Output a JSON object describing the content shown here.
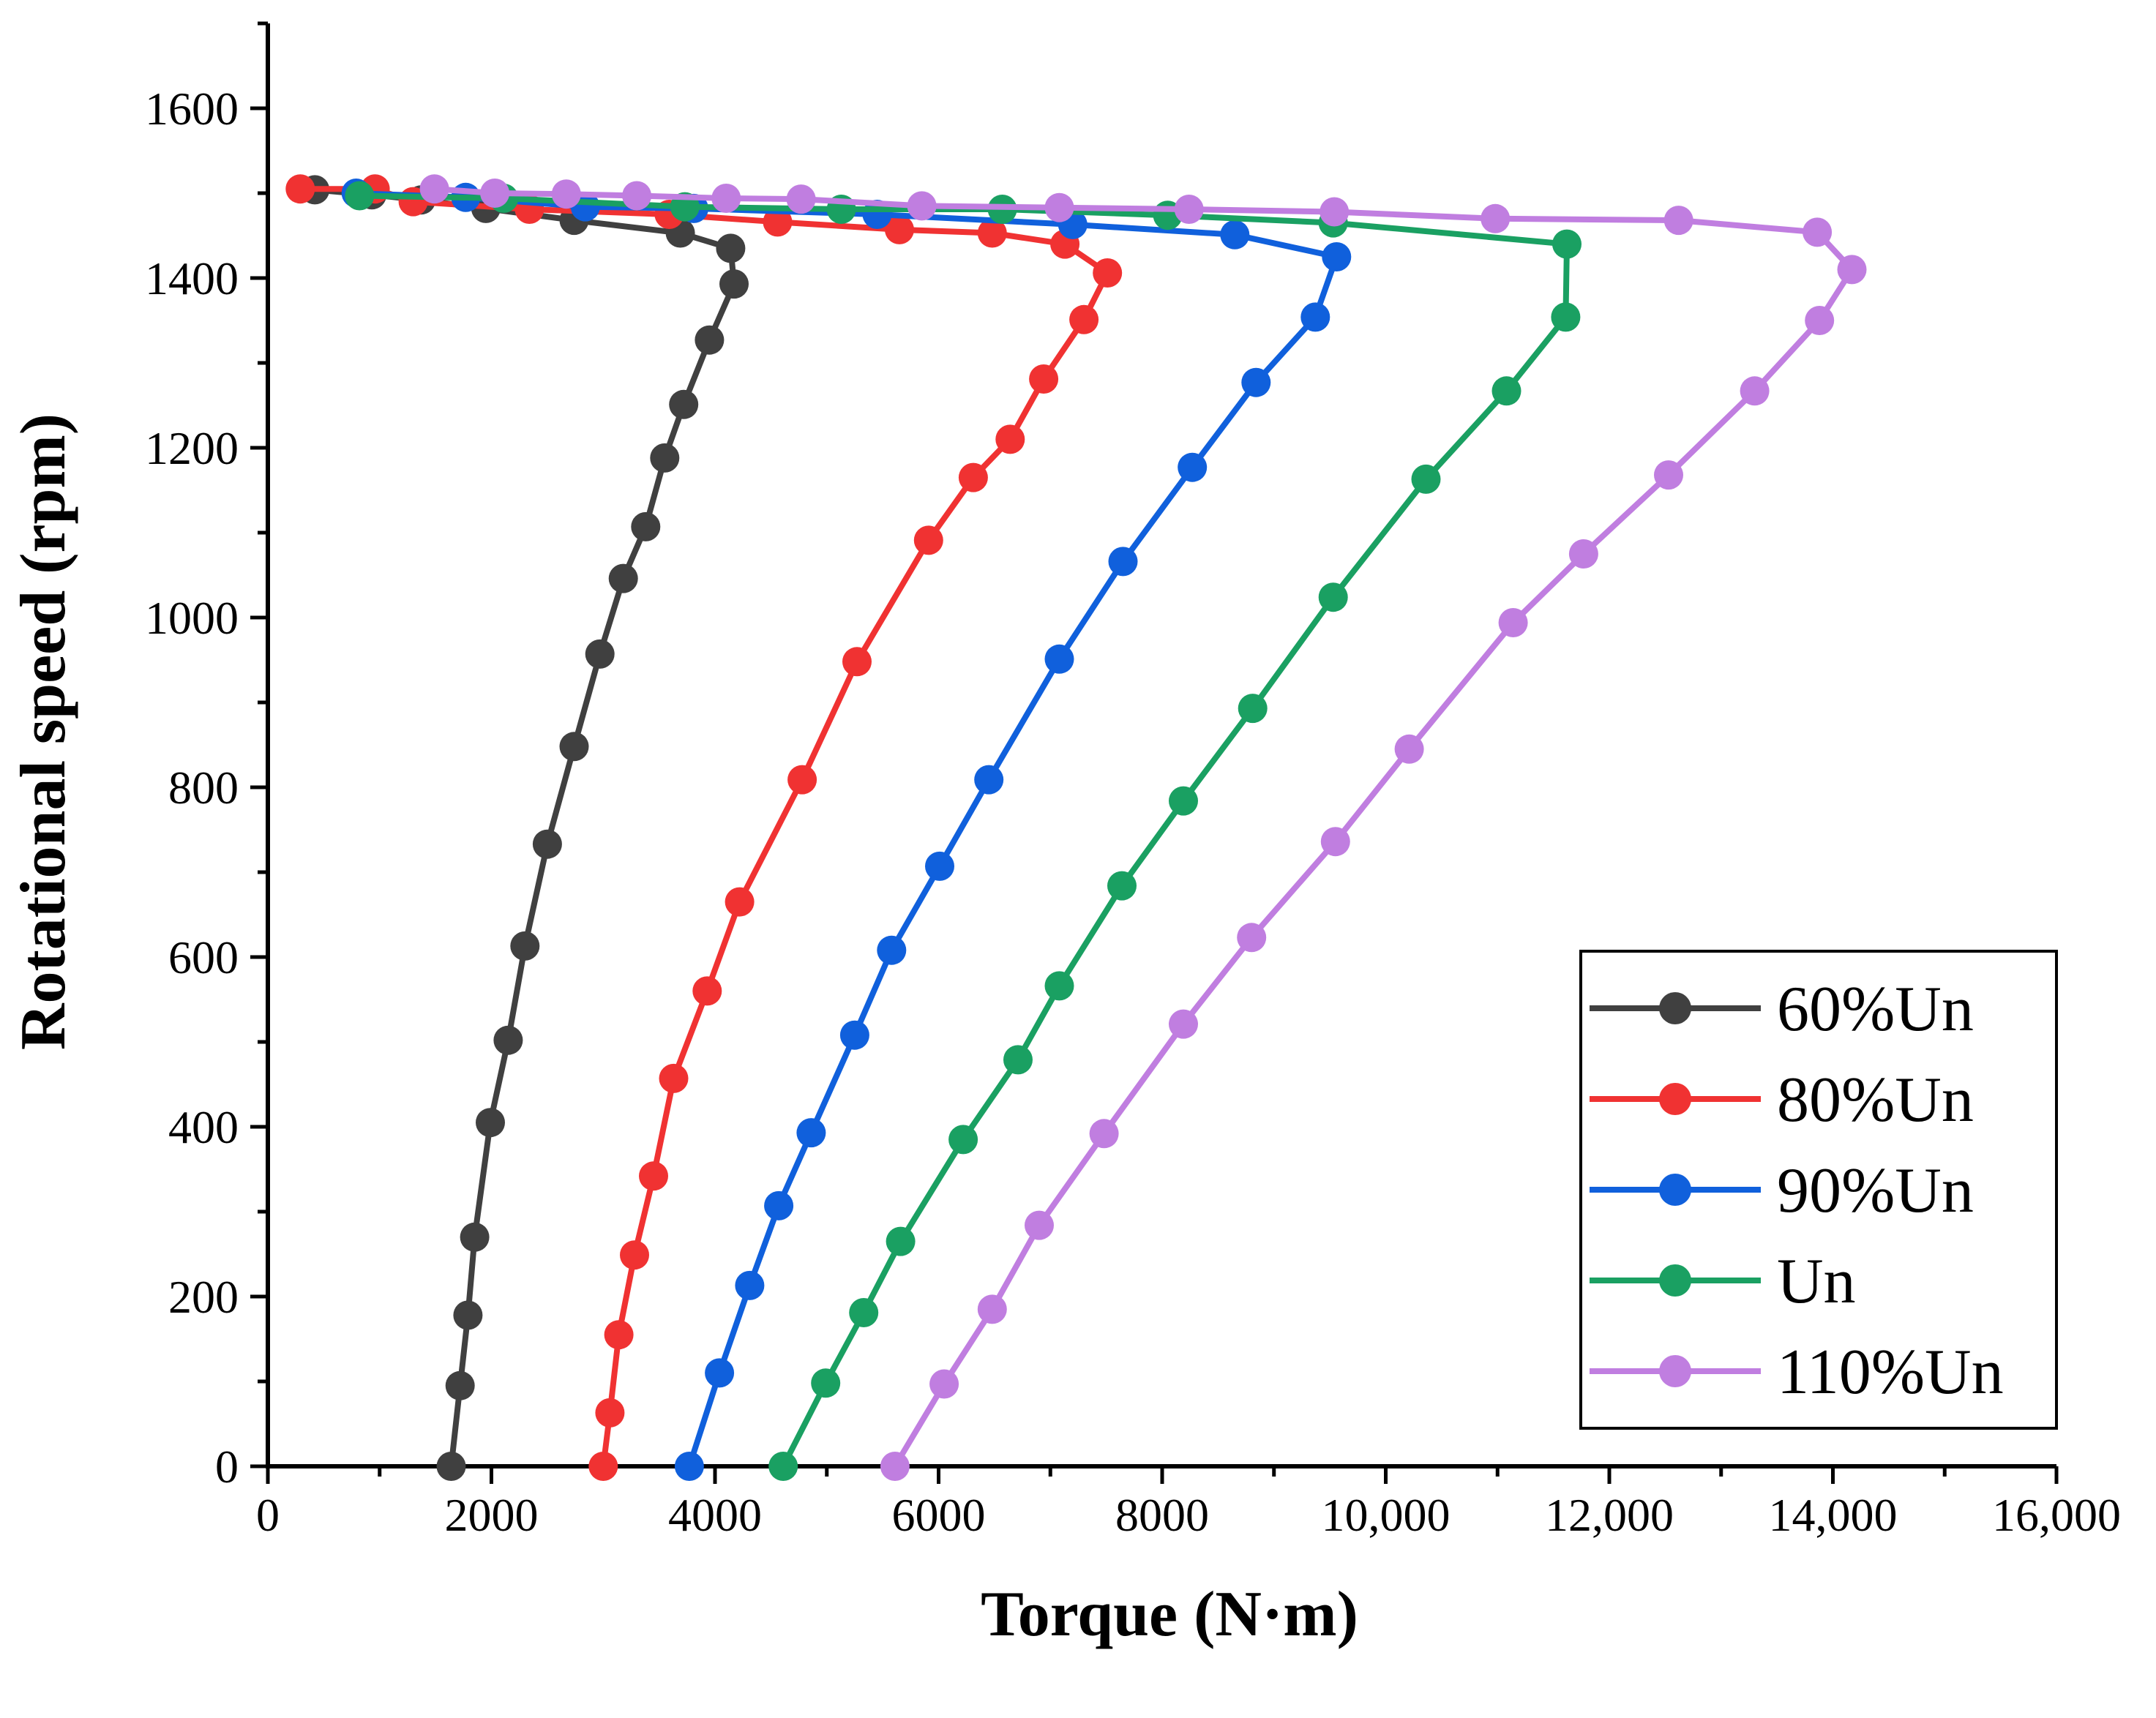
{
  "chart_data": {
    "type": "line",
    "title": "",
    "xlabel": "Torque (N·m)",
    "ylabel": "Rotational speed (rpm)",
    "xlim": [
      0,
      16000
    ],
    "ylim": [
      0,
      1700
    ],
    "x_ticks": [
      0,
      2000,
      4000,
      6000,
      8000,
      10000,
      12000,
      14000,
      16000
    ],
    "x_tick_labels": [
      "0",
      "2000",
      "4000",
      "6000",
      "8000",
      "10,000",
      "12,000",
      "14,000",
      "16,000"
    ],
    "y_ticks": [
      0,
      200,
      400,
      600,
      800,
      1000,
      1200,
      1400,
      1600
    ],
    "y_tick_labels": [
      "0",
      "200",
      "400",
      "600",
      "800",
      "1000",
      "1200",
      "1400",
      "1600"
    ],
    "grid": false,
    "legend_position": "bottom-right",
    "series": [
      {
        "name": "60%Un",
        "color": "#404040",
        "x": [
          1640,
          1720,
          1790,
          1850,
          1990,
          2150,
          2300,
          2500,
          2740,
          2970,
          3180,
          3380,
          3550,
          3720,
          3950,
          4170,
          4140,
          3690,
          2740,
          1950,
          1370,
          930,
          420
        ],
        "y": [
          0,
          95,
          178,
          270,
          405,
          502,
          613,
          733,
          848,
          957,
          1046,
          1107,
          1188,
          1251,
          1327,
          1393,
          1435,
          1453,
          1468,
          1482,
          1492,
          1498,
          1504
        ]
      },
      {
        "name": "80%Un",
        "color": "#f03232",
        "x": [
          3000,
          3060,
          3140,
          3280,
          3450,
          3630,
          3930,
          4220,
          4780,
          5270,
          5910,
          6310,
          6640,
          6940,
          7300,
          7510,
          7130,
          6480,
          5650,
          4560,
          3590,
          2340,
          1300,
          960,
          290
        ],
        "y": [
          0,
          63,
          155,
          249,
          342,
          457,
          560,
          665,
          809,
          948,
          1091,
          1165,
          1210,
          1281,
          1351,
          1406,
          1440,
          1453,
          1457,
          1466,
          1475,
          1481,
          1490,
          1505,
          1505
        ]
      },
      {
        "name": "90%Un",
        "color": "#1060dc",
        "x": [
          3770,
          4040,
          4310,
          4570,
          4860,
          5250,
          5580,
          6010,
          6450,
          7080,
          7650,
          8270,
          8840,
          9370,
          9560,
          8650,
          7200,
          5450,
          3810,
          2840,
          1770,
          790
        ],
        "y": [
          0,
          110,
          213,
          307,
          393,
          508,
          608,
          707,
          809,
          951,
          1066,
          1177,
          1277,
          1354,
          1425,
          1451,
          1463,
          1475,
          1482,
          1484,
          1495,
          1500
        ]
      },
      {
        "name": "Un",
        "color": "#1aa062",
        "x": [
          4610,
          4990,
          5330,
          5660,
          6220,
          6710,
          7080,
          7640,
          8190,
          8810,
          9530,
          10360,
          11080,
          11610,
          11620,
          9530,
          8050,
          6570,
          5130,
          3730,
          2110,
          820
        ],
        "y": [
          0,
          98,
          181,
          265,
          385,
          479,
          566,
          684,
          784,
          893,
          1024,
          1163,
          1267,
          1354,
          1440,
          1465,
          1474,
          1481,
          1481,
          1484,
          1494,
          1497
        ]
      },
      {
        "name": "110%Un",
        "color": "#c07ee0",
        "x": [
          5610,
          6050,
          6480,
          6900,
          7480,
          8190,
          8800,
          9550,
          10210,
          11140,
          11770,
          12530,
          13300,
          13880,
          14170,
          13860,
          12620,
          10980,
          9540,
          8240,
          7080,
          5850,
          4770,
          4100,
          3300,
          2670,
          2030,
          1490
        ],
        "y": [
          0,
          97,
          185,
          284,
          392,
          521,
          623,
          736,
          845,
          994,
          1075,
          1168,
          1267,
          1350,
          1410,
          1454,
          1468,
          1470,
          1478,
          1481,
          1483,
          1485,
          1493,
          1494,
          1497,
          1499,
          1500,
          1505
        ]
      }
    ]
  }
}
